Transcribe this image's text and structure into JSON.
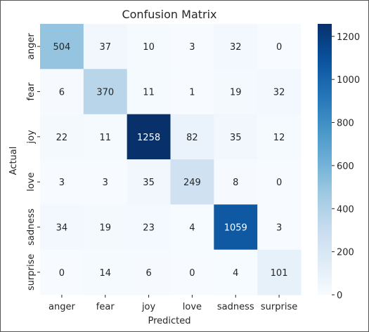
{
  "chart_data": {
    "type": "heatmap",
    "title": "Confusion Matrix",
    "xlabel": "Predicted",
    "ylabel": "Actual",
    "x_categories": [
      "anger",
      "fear",
      "joy",
      "love",
      "sadness",
      "surprise"
    ],
    "y_categories": [
      "anger",
      "fear",
      "joy",
      "love",
      "sadness",
      "surprise"
    ],
    "values": [
      [
        504,
        37,
        10,
        3,
        32,
        0
      ],
      [
        6,
        370,
        11,
        1,
        19,
        32
      ],
      [
        22,
        11,
        1258,
        82,
        35,
        12
      ],
      [
        3,
        3,
        35,
        249,
        8,
        0
      ],
      [
        34,
        19,
        23,
        4,
        1059,
        3
      ],
      [
        0,
        14,
        6,
        0,
        4,
        101
      ]
    ],
    "colorbar": {
      "range": [
        0,
        1258
      ],
      "ticks": [
        0,
        200,
        400,
        600,
        800,
        1000,
        1200
      ],
      "colormap": "Blues"
    },
    "grid": false,
    "annotations": "cell values shown"
  }
}
